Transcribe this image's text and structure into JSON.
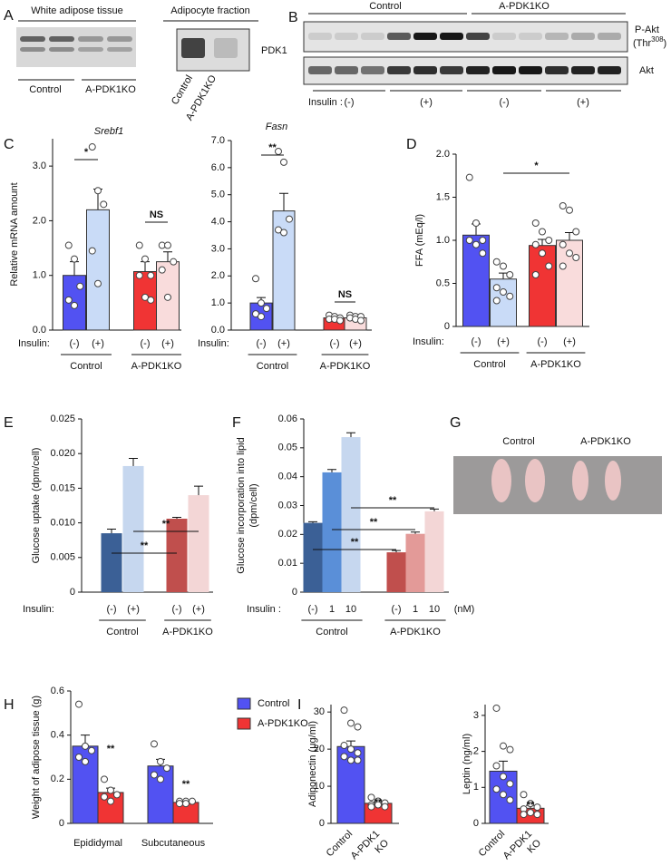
{
  "panel_labels": [
    "A",
    "B",
    "C",
    "D",
    "E",
    "F",
    "G",
    "H",
    "I"
  ],
  "blots": {
    "a_left": {
      "title": "White adipose tissue",
      "groups": [
        "Control",
        "A-PDK1KO"
      ]
    },
    "a_right": {
      "title": "Adipocyte fraction",
      "protein": "PDK1",
      "lanes": [
        "Control",
        "A-PDK1KO"
      ]
    },
    "b": {
      "groups": [
        "Control",
        "A-PDK1KO"
      ],
      "rows": [
        "P-Akt",
        "Akt"
      ],
      "site": {
        "prefix": "(Thr",
        "sup": "308",
        "suffix": ")"
      },
      "insulin_label": "Insulin :",
      "conditions": [
        "(-)",
        "(+)",
        "(-)",
        "(+)"
      ]
    }
  },
  "photo": {
    "labels": [
      "Control",
      "A-PDK1KO"
    ]
  },
  "chart_data": [
    {
      "type": "bar",
      "title": "Srebf1",
      "y_label": "Relative mRNA amount",
      "ylim": [
        0,
        3.5
      ],
      "yticks": [
        {
          "value": 0,
          "label": "0.0"
        },
        {
          "value": 1,
          "label": "1.0"
        },
        {
          "value": 2,
          "label": "2.0"
        },
        {
          "value": 3,
          "label": "3.0"
        }
      ],
      "x_prefix": "Insulin:",
      "categories": [
        "(-)",
        "(+)",
        "(-)",
        "(+)"
      ],
      "groups": [
        "Control",
        "A-PDK1KO"
      ],
      "colors": [
        "#5252f2",
        "#c9dbf7",
        "#f03434",
        "#f9dcdc"
      ],
      "values": [
        1.0,
        2.2,
        1.07,
        1.25
      ],
      "errors": [
        0.25,
        0.38,
        0.18,
        0.18
      ],
      "points": [
        [
          1.55,
          1.3,
          0.8,
          0.55,
          0.45
        ],
        [
          3.35,
          2.55,
          2.3,
          1.45,
          0.85
        ],
        [
          1.55,
          1.3,
          1.0,
          1.0,
          0.6,
          0.55
        ],
        [
          1.55,
          1.55,
          1.25,
          1.1,
          0.6
        ]
      ],
      "annotations": [
        "*",
        "NS"
      ]
    },
    {
      "type": "bar",
      "title": "Fasn",
      "ylim": [
        0,
        7
      ],
      "yticks": [
        {
          "value": 0,
          "label": "0.0"
        },
        {
          "value": 1,
          "label": "1.0"
        },
        {
          "value": 2,
          "label": "2.0"
        },
        {
          "value": 3,
          "label": "3.0"
        },
        {
          "value": 4,
          "label": "4.0"
        },
        {
          "value": 5,
          "label": "5.0"
        },
        {
          "value": 6,
          "label": "6.0"
        },
        {
          "value": 7,
          "label": "7.0"
        }
      ],
      "x_prefix": "Insulin:",
      "categories": [
        "(-)",
        "(+)",
        "(-)",
        "(+)"
      ],
      "groups": [
        "Control",
        "A-PDK1KO"
      ],
      "colors": [
        "#5252f2",
        "#c9dbf7",
        "#f03434",
        "#f9dcdc"
      ],
      "values": [
        1.0,
        4.4,
        0.45,
        0.45
      ],
      "errors": [
        0.2,
        0.65,
        0.05,
        0.05
      ],
      "points": [
        [
          1.9,
          1.0,
          0.8,
          0.6,
          0.5
        ],
        [
          6.6,
          6.2,
          4.1,
          3.7,
          3.6
        ],
        [
          0.55,
          0.5,
          0.45,
          0.4,
          0.4,
          0.35
        ],
        [
          0.55,
          0.5,
          0.5,
          0.45,
          0.4,
          0.35
        ]
      ],
      "annotations": [
        "**",
        "NS"
      ]
    },
    {
      "type": "bar",
      "y_label": "FFA (mEq/l)",
      "ylim": [
        0,
        2
      ],
      "yticks": [
        0,
        0.5,
        {
          "value": 1,
          "label": "1.0"
        },
        1.5,
        {
          "value": 2,
          "label": "2.0"
        }
      ],
      "x_prefix": "Insulin:",
      "categories": [
        "(-)",
        "(+)",
        "(-)",
        "(+)"
      ],
      "groups": [
        "Control",
        "A-PDK1KO"
      ],
      "colors": [
        "#5252f2",
        "#c9dbf7",
        "#f03434",
        "#f9dcdc"
      ],
      "values": [
        1.06,
        0.55,
        0.94,
        1.0
      ],
      "errors": [
        0.13,
        0.07,
        0.07,
        0.09
      ],
      "points": [
        [
          1.73,
          1.2,
          1.0,
          1.0,
          0.95,
          0.85
        ],
        [
          0.75,
          0.7,
          0.6,
          0.45,
          0.4,
          0.35,
          0.3
        ],
        [
          1.2,
          1.1,
          1.0,
          0.95,
          0.85,
          0.7,
          0.6
        ],
        [
          1.4,
          1.35,
          1.1,
          0.95,
          0.85,
          0.8,
          0.7
        ]
      ],
      "annotations": [
        "*"
      ]
    },
    {
      "type": "bar",
      "y_label": "Glucose uptake (dpm/cell)",
      "ylim": [
        0,
        0.025
      ],
      "yticks": [
        0,
        0.005,
        {
          "value": 0.01,
          "label": "0.010"
        },
        0.015,
        {
          "value": 0.02,
          "label": "0.020"
        },
        0.025
      ],
      "x_prefix": "Insulin:",
      "categories": [
        "(-)",
        "(+)",
        "(-)",
        "(+)"
      ],
      "groups": [
        "Control",
        "A-PDK1KO"
      ],
      "colors": [
        "#3b6096",
        "#c6d7ef",
        "#c04f4d",
        "#f3d6d6"
      ],
      "values": [
        0.0085,
        0.0182,
        0.0106,
        0.014
      ],
      "errors": [
        0.0006,
        0.0011,
        0.0002,
        0.0013
      ],
      "annotations": [
        "**",
        "**"
      ]
    },
    {
      "type": "bar",
      "y_label": [
        "Glucose incorporation into lipid",
        "(dpm/cell)"
      ],
      "ylim": [
        0,
        0.06
      ],
      "yticks": [
        0,
        0.01,
        0.02,
        0.03,
        0.04,
        0.05,
        0.06
      ],
      "x_prefix": "Insulin :",
      "x_unit": "(nM)",
      "categories": [
        "(-)",
        "1",
        "10",
        "(-)",
        "1",
        "10"
      ],
      "groups": [
        "Control",
        "A-PDK1KO"
      ],
      "colors": [
        "#3b6096",
        "#5a8fd8",
        "#c6d7ef",
        "#c04f4d",
        "#e39a98",
        "#f3d6d6"
      ],
      "values": [
        0.024,
        0.0415,
        0.0537,
        0.0138,
        0.0202,
        0.028
      ],
      "errors": [
        0.0004,
        0.001,
        0.0015,
        0.0006,
        0.0006,
        0.0008
      ],
      "annotations": [
        "**",
        "**",
        "**"
      ]
    },
    {
      "type": "grouped_bar",
      "y_label": "Weight of adipose tissue (g)",
      "ylim": [
        0,
        0.6
      ],
      "yticks": [
        0,
        0.2,
        0.4,
        0.6
      ],
      "categories": [
        "Epididymal",
        "Subcutaneous"
      ],
      "series": [
        {
          "name": "Control",
          "color": "#5252f2",
          "values": [
            0.35,
            0.26
          ],
          "errors": [
            0.05,
            0.03
          ],
          "points": [
            [
              0.54,
              0.35,
              0.33,
              0.3,
              0.28
            ],
            [
              0.36,
              0.28,
              0.25,
              0.22,
              0.2
            ]
          ]
        },
        {
          "name": "A-PDK1KO",
          "color": "#f03434",
          "values": [
            0.14,
            0.095
          ],
          "errors": [
            0.02,
            0.005
          ],
          "points": [
            [
              0.2,
              0.15,
              0.13,
              0.12,
              0.1
            ],
            [
              0.1,
              0.1,
              0.1,
              0.09,
              0.09
            ]
          ]
        }
      ],
      "annotations": [
        "**",
        "**"
      ]
    },
    {
      "type": "bar",
      "y_label": "Adiponectin (μg/ml)",
      "ylim": [
        0,
        32
      ],
      "yticks": [
        0,
        10,
        20,
        30
      ],
      "categories": [
        [
          "Control"
        ],
        [
          "A-PDK1",
          "KO"
        ]
      ],
      "colors": [
        "#5252f2",
        "#f03434"
      ],
      "values": [
        20.7,
        5.4
      ],
      "errors": [
        1.5,
        0.4
      ],
      "points": [
        [
          30.5,
          27,
          26,
          21,
          20,
          19,
          18,
          17,
          17
        ],
        [
          7,
          6,
          5.5,
          5,
          5,
          4.5,
          4.5
        ]
      ],
      "annotations": [
        "**"
      ]
    },
    {
      "type": "bar",
      "y_label": "Leptin (ng/ml)",
      "ylim": [
        0,
        3.3
      ],
      "yticks": [
        0,
        1,
        2,
        3
      ],
      "categories": [
        [
          "Control"
        ],
        [
          "A-PDK1",
          "KO"
        ]
      ],
      "colors": [
        "#5252f2",
        "#f03434"
      ],
      "values": [
        1.45,
        0.42
      ],
      "errors": [
        0.28,
        0.08
      ],
      "points": [
        [
          3.2,
          2.15,
          2.05,
          1.6,
          1.3,
          1.1,
          0.95,
          0.8,
          0.65
        ],
        [
          0.8,
          0.55,
          0.45,
          0.4,
          0.3,
          0.25,
          0.25
        ]
      ],
      "annotations": [
        "**"
      ]
    }
  ]
}
